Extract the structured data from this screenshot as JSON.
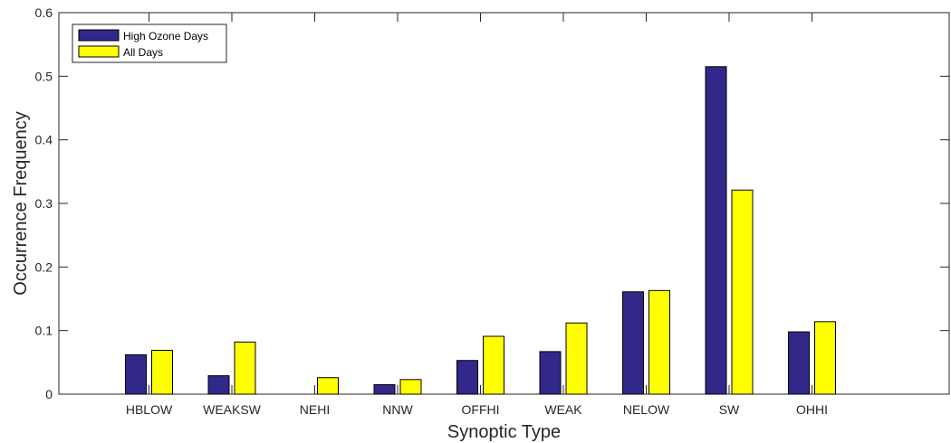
{
  "chart_data": {
    "type": "bar",
    "xlabel": "Synoptic Type",
    "ylabel": "Occurrence Frequency",
    "categories": [
      "HBLOW",
      "WEAKSW",
      "NEHI",
      "NNW",
      "OFFHI",
      "WEAK",
      "NELOW",
      "SW",
      "OHHI"
    ],
    "series": [
      {
        "name": "High Ozone Days",
        "color": "#32288a",
        "values": [
          0.062,
          0.029,
          0.0,
          0.015,
          0.053,
          0.067,
          0.161,
          0.515,
          0.098
        ]
      },
      {
        "name": "All Days",
        "color": "#ffff00",
        "values": [
          0.069,
          0.082,
          0.026,
          0.023,
          0.091,
          0.112,
          0.163,
          0.321,
          0.114
        ]
      }
    ],
    "ylim": [
      0,
      0.6
    ],
    "yticks": [
      "0",
      "0.1",
      "0.2",
      "0.3",
      "0.4",
      "0.5",
      "0.6"
    ],
    "legend": {
      "position": "top-left",
      "entries": [
        "High Ozone Days",
        "All Days"
      ]
    },
    "grid": false
  }
}
